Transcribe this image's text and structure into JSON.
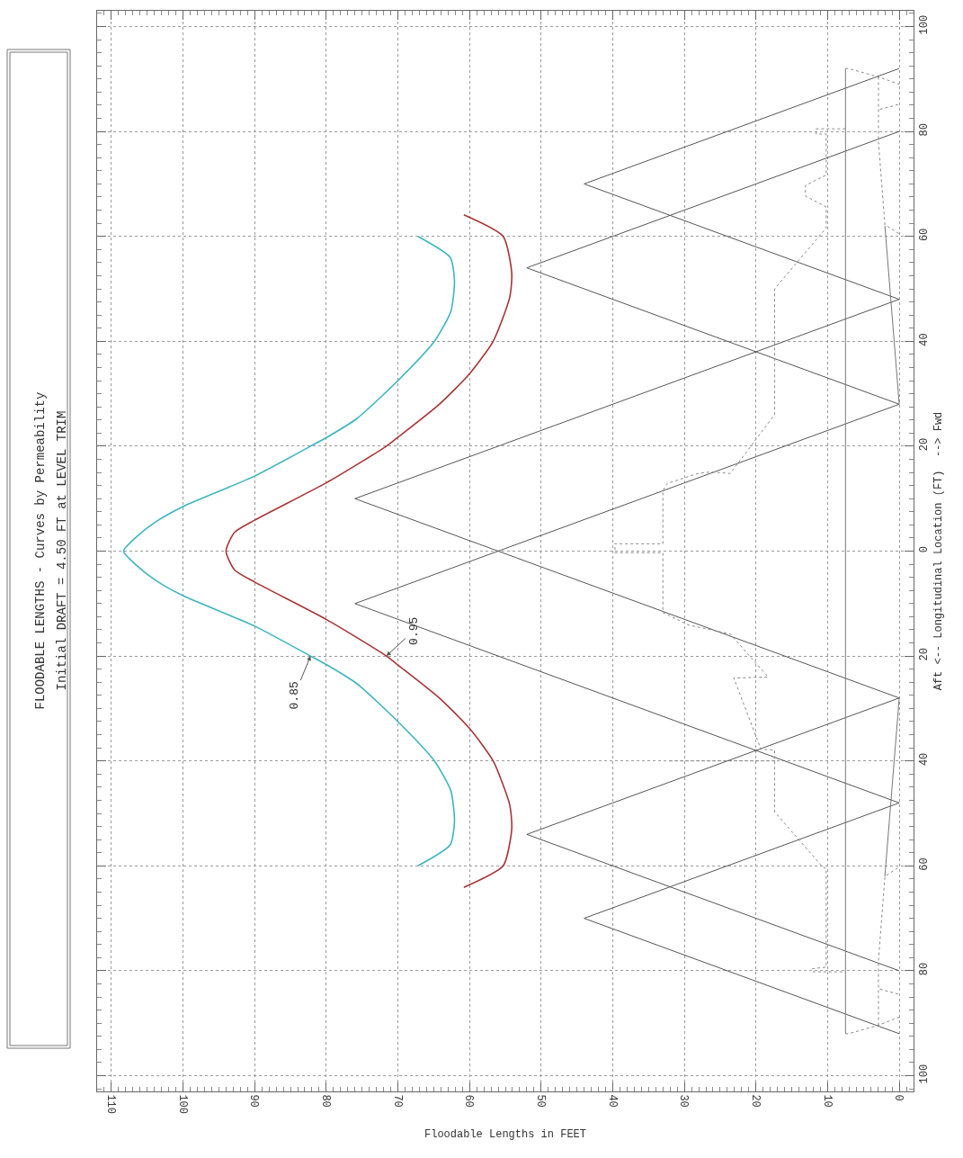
{
  "chart_data": {
    "type": "line",
    "title": "FLOODABLE LENGTHS - Curves by Permeability",
    "subtitle": "Initial DRAFT = 4.50 FT at LEVEL TRIM",
    "xlabel": "Floodable Lengths in FEET",
    "ylabel": "Aft <-- Longitudinal Location (FT)  --> Fwd",
    "xlim": [
      112,
      -2
    ],
    "xticks": [
      110,
      100,
      90,
      80,
      70,
      60,
      50,
      40,
      30,
      20,
      10,
      0
    ],
    "ylim": [
      -103,
      103
    ],
    "yticks": [
      {
        "value": -100,
        "label": "100"
      },
      {
        "value": -80,
        "label": "80"
      },
      {
        "value": -60,
        "label": "60"
      },
      {
        "value": -40,
        "label": "40"
      },
      {
        "value": -20,
        "label": "20"
      },
      0,
      20,
      40,
      60,
      80,
      100
    ],
    "grid": true,
    "series": [
      {
        "color": "#3db5be",
        "line_style": "solid",
        "x": [
          67.2,
          62.7,
          62.1,
          62.6,
          64.9,
          70,
          75.7,
          79.9,
          82.2,
          90,
          100,
          103.8,
          106.6,
          108.3,
          106.6,
          103.8,
          100,
          90,
          82.2,
          79.9,
          75.7,
          70,
          64.9,
          62.6,
          62.1,
          62.7,
          67.2
        ],
        "values": [
          60,
          56,
          51.6,
          45.7,
          40,
          32.5,
          25.3,
          21.7,
          20,
          14.3,
          8.5,
          5.6,
          2.6,
          0,
          -2.6,
          -5.6,
          -8.5,
          -14.3,
          -20,
          -21.7,
          -25.3,
          -32.5,
          -40,
          -45.7,
          -51.6,
          -56,
          -60
        ]
      },
      {
        "color": "#a83434",
        "line_style": "solid",
        "x": [
          60.8,
          55.3,
          54.1,
          54.4,
          56.7,
          60,
          64.3,
          70,
          71.6,
          79.9,
          90,
          92.8,
          94,
          92.8,
          90,
          79.9,
          71.6,
          70,
          64.3,
          60,
          56.7,
          54.4,
          54.1,
          55.3,
          60.8
        ],
        "values": [
          64.1,
          60,
          52.9,
          48.3,
          40,
          33.8,
          27.9,
          21.7,
          20,
          13.1,
          5.9,
          3.6,
          0,
          -3.6,
          -5.9,
          -13.1,
          -20,
          -21.7,
          -27.9,
          -33.8,
          -40,
          -48.3,
          -52.9,
          -60,
          -64.1
        ]
      },
      {
        "color": "#555555",
        "line_style": "solid",
        "x": [
          0,
          76,
          0
        ],
        "values": [
          -28,
          10,
          48
        ]
      },
      {
        "color": "#555555",
        "line_style": "solid",
        "x": [
          0,
          76,
          0
        ],
        "values": [
          -48,
          -10,
          28
        ]
      },
      {
        "color": "#555555",
        "line_style": "solid",
        "x": [
          0,
          52,
          0
        ],
        "values": [
          28,
          54,
          80
        ]
      },
      {
        "color": "#555555",
        "line_style": "solid",
        "x": [
          0,
          44,
          0
        ],
        "values": [
          48,
          70,
          92
        ]
      },
      {
        "color": "#555555",
        "line_style": "solid",
        "x": [
          0,
          52,
          0
        ],
        "values": [
          -80,
          -54,
          -28
        ]
      },
      {
        "color": "#555555",
        "line_style": "solid",
        "x": [
          0,
          44,
          0
        ],
        "values": [
          -92,
          -70,
          -48
        ]
      },
      {
        "color": "#777777",
        "line_style": "solid",
        "x": [
          7.5,
          7.5
        ],
        "values": [
          92,
          -92
        ]
      },
      {
        "color": "#777777",
        "line_style": "solid",
        "x": [
          2,
          0
        ],
        "values": [
          62,
          28
        ]
      },
      {
        "color": "#777777",
        "line_style": "solid",
        "x": [
          2,
          0
        ],
        "values": [
          -62,
          -28
        ]
      },
      {
        "color": "#888888",
        "line_style": "dotted",
        "x": [
          7.5,
          7.1,
          2.9,
          0
        ],
        "values": [
          92,
          92,
          90.4,
          89
        ]
      },
      {
        "color": "#888888",
        "line_style": "dotted",
        "x": [
          7.5,
          7.1,
          2.9,
          0
        ],
        "values": [
          -92,
          -92,
          -90.4,
          -88.8
        ]
      },
      {
        "color": "#888888",
        "line_style": "dotted",
        "x": [
          2.9,
          2.9,
          2,
          0
        ],
        "values": [
          90.4,
          78,
          62.2,
          60.5
        ]
      },
      {
        "color": "#888888",
        "line_style": "dotted",
        "x": [
          2.9,
          2.9,
          2,
          0
        ],
        "values": [
          -90.4,
          -78,
          -62,
          -60.2
        ]
      },
      {
        "color": "#888888",
        "line_style": "dotted",
        "x": [
          2.7,
          0
        ],
        "values": [
          84.2,
          85.2
        ]
      },
      {
        "color": "#888888",
        "line_style": "dotted",
        "x": [
          2.7,
          0
        ],
        "values": [
          -83.5,
          -84.5
        ]
      },
      {
        "color": "#888888",
        "line_style": "dotted",
        "x": [
          7.5,
          11.6,
          11.6,
          10.2,
          10.2,
          13.1,
          13.1,
          10.2,
          10.2,
          17.4,
          17.4,
          23.6,
          26.3,
          28.1,
          32.4,
          33,
          33,
          39.7,
          39.7,
          33,
          33,
          29.4,
          23.6,
          18.3,
          23.1,
          19.3,
          17.4,
          17.4,
          10.7,
          10.2,
          10.2,
          12.1,
          12.1,
          7.5
        ],
        "values": [
          80.5,
          80.5,
          79.5,
          79.5,
          71.7,
          69.7,
          67.7,
          65.6,
          61.6,
          50,
          26,
          14.8,
          15.1,
          14.8,
          12.9,
          11.5,
          1.4,
          1.4,
          -0.3,
          -0.3,
          -11.7,
          -14.1,
          -15.8,
          -24,
          -24.2,
          -37.8,
          -37.9,
          -49.7,
          -60.2,
          -60.5,
          -79.3,
          -79.6,
          -80.2,
          -80.2
        ]
      },
      {
        "color": "#888888",
        "line_style": "dotted",
        "x": [
          32,
          17
        ],
        "values": [
          40,
          40
        ]
      },
      {
        "color": "#888888",
        "line_style": "dotted",
        "x": [
          32,
          17
        ],
        "values": [
          -40,
          -40
        ]
      }
    ],
    "annotations": [
      {
        "text": "0.85",
        "x": 82.2,
        "y": -20
      },
      {
        "text": "0.95",
        "x": 71.6,
        "y": -20
      }
    ]
  }
}
